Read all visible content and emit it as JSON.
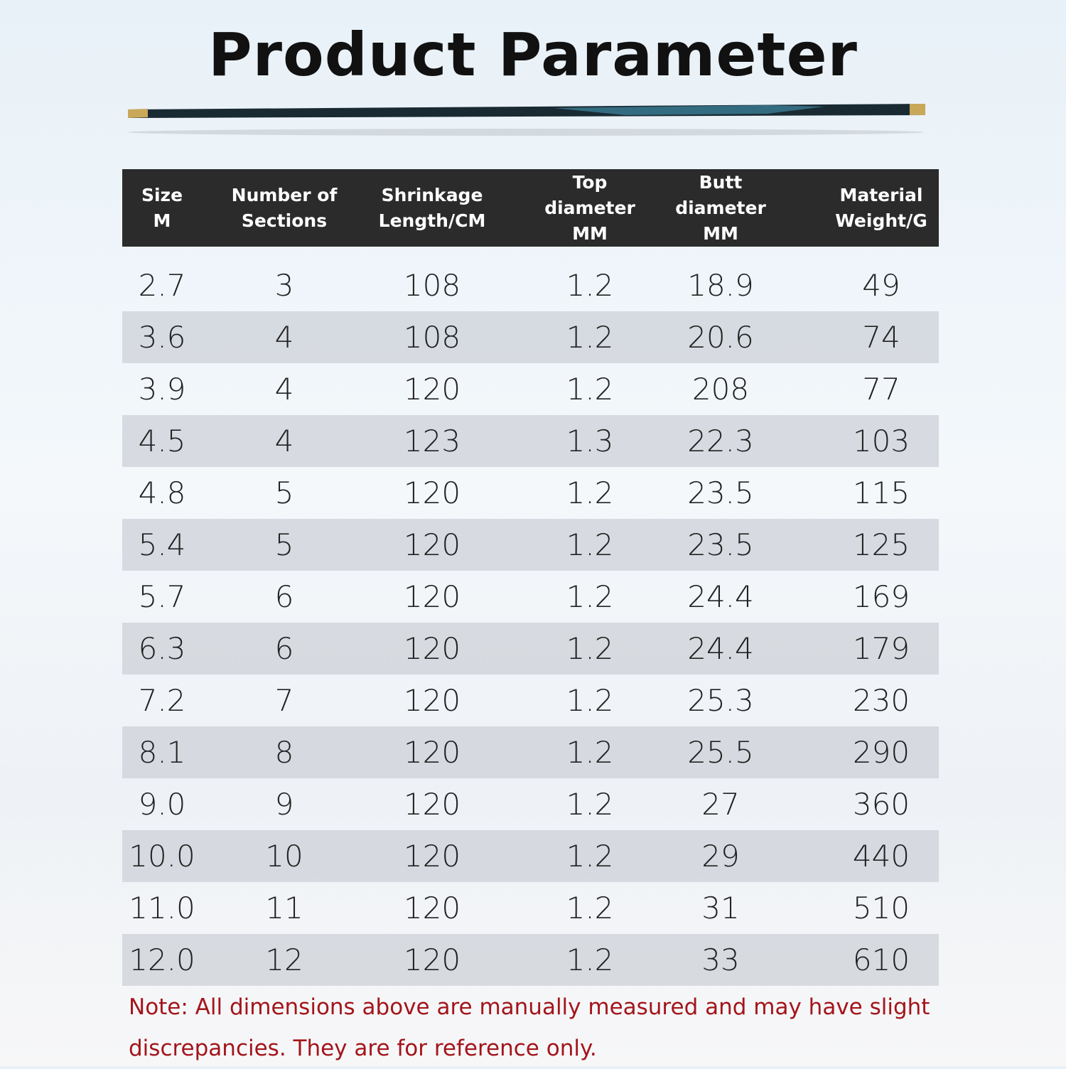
{
  "header": {
    "title": "Product Parameter"
  },
  "table": {
    "columns": [
      "Size\nM",
      "Number of\nSections",
      "Shrinkage\nLength/CM",
      "Top\ndiameter\nMM",
      "Butt\ndiameter\nMM",
      "Material\nWeight/G"
    ],
    "rows": [
      [
        "2.7",
        "3",
        "108",
        "1.2",
        "18.9",
        "49"
      ],
      [
        "3.6",
        "4",
        "108",
        "1.2",
        "20.6",
        "74"
      ],
      [
        "3.9",
        "4",
        "120",
        "1.2",
        "208",
        "77"
      ],
      [
        "4.5",
        "4",
        "123",
        "1.3",
        "22.3",
        "103"
      ],
      [
        "4.8",
        "5",
        "120",
        "1.2",
        "23.5",
        "115"
      ],
      [
        "5.4",
        "5",
        "120",
        "1.2",
        "23.5",
        "125"
      ],
      [
        "5.7",
        "6",
        "120",
        "1.2",
        "24.4",
        "169"
      ],
      [
        "6.3",
        "6",
        "120",
        "1.2",
        "24.4",
        "179"
      ],
      [
        "7.2",
        "7",
        "120",
        "1.2",
        "25.3",
        "230"
      ],
      [
        "8.1",
        "8",
        "120",
        "1.2",
        "25.5",
        "290"
      ],
      [
        "9.0",
        "9",
        "120",
        "1.2",
        "27",
        "360"
      ],
      [
        "10.0",
        "10",
        "120",
        "1.2",
        "29",
        "440"
      ],
      [
        "11.0",
        "11",
        "120",
        "1.2",
        "31",
        "510"
      ],
      [
        "12.0",
        "12",
        "120",
        "1.2",
        "33",
        "610"
      ]
    ]
  },
  "note": "Note: All dimensions above are manually measured and may have slight discrepancies. They are for reference only."
}
